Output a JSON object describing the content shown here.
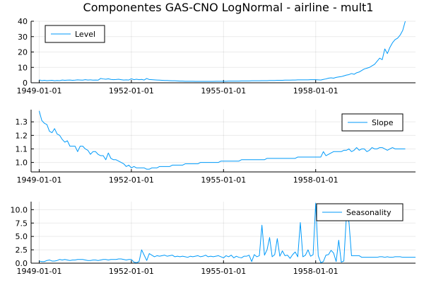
{
  "chart_data": {
    "title": "Componentes GAS-CNO LogNormal - airline - mult1",
    "type": "line",
    "x_start_year": 1949,
    "x_count": 144,
    "color": "#009AFA",
    "grid": true,
    "panels": [
      {
        "series_name": "Level",
        "legend_placement": "top-left",
        "ylim": [
          0,
          40
        ],
        "yticks": [
          0,
          10,
          20,
          30,
          40
        ],
        "ytick_labels": [
          "0",
          "10",
          "20",
          "30",
          "40"
        ],
        "xticks": [
          "1949-01-01",
          "1952-01-01",
          "1955-01-01",
          "1958-01-01"
        ],
        "values": [
          1.9,
          1.4,
          1.6,
          1.4,
          1.5,
          1.6,
          1.3,
          1.5,
          1.4,
          1.8,
          1.6,
          1.7,
          1.8,
          1.6,
          1.7,
          1.9,
          1.8,
          1.7,
          2,
          1.8,
          1.9,
          1.7,
          1.8,
          1.7,
          2.8,
          2.5,
          2.3,
          2.6,
          2.2,
          2,
          2.1,
          2.3,
          2,
          1.8,
          1.9,
          1.8,
          2.6,
          2,
          2.3,
          2,
          2.2,
          1.8,
          2.8,
          2.1,
          2,
          1.9,
          1.8,
          1.7,
          1.6,
          1.5,
          1.5,
          1.4,
          1.3,
          1.3,
          1.2,
          1.1,
          1.1,
          1,
          1,
          1,
          1,
          0.9,
          0.9,
          0.9,
          0.9,
          0.9,
          0.9,
          0.9,
          0.9,
          1,
          1,
          1,
          1,
          1,
          1.1,
          1.1,
          1.1,
          1.1,
          1.1,
          1.2,
          1.2,
          1.2,
          1.2,
          1.3,
          1.3,
          1.3,
          1.3,
          1.4,
          1.4,
          1.4,
          1.5,
          1.5,
          1.5,
          1.6,
          1.6,
          1.6,
          1.7,
          1.7,
          1.7,
          1.8,
          1.8,
          1.9,
          1.9,
          1.9,
          1.9,
          1.9,
          2,
          2,
          2,
          1.9,
          1.8,
          2.2,
          2.5,
          3,
          3.2,
          3,
          3.5,
          3.8,
          4,
          4.5,
          5,
          5.3,
          6,
          5.5,
          6.5,
          7,
          8,
          9,
          9.5,
          10,
          11,
          12,
          14,
          16,
          15,
          22,
          19,
          23,
          26,
          28,
          29,
          31,
          34,
          40
        ]
      },
      {
        "series_name": "Slope",
        "legend_placement": "top-right",
        "ylim": [
          0.93,
          1.39
        ],
        "yticks": [
          1.0,
          1.1,
          1.2,
          1.3
        ],
        "ytick_labels": [
          "1.0",
          "1.1",
          "1.2",
          "1.3"
        ],
        "xticks": [
          "1949-01-01",
          "1952-01-01",
          "1955-01-01",
          "1958-01-01"
        ],
        "values": [
          1.38,
          1.31,
          1.29,
          1.28,
          1.23,
          1.22,
          1.25,
          1.21,
          1.2,
          1.17,
          1.15,
          1.16,
          1.12,
          1.12,
          1.12,
          1.08,
          1.12,
          1.12,
          1.1,
          1.09,
          1.06,
          1.08,
          1.08,
          1.06,
          1.05,
          1.05,
          1.02,
          1.07,
          1.03,
          1.02,
          1.02,
          1.01,
          1,
          0.99,
          0.97,
          0.98,
          0.96,
          0.97,
          0.96,
          0.96,
          0.96,
          0.96,
          0.95,
          0.95,
          0.96,
          0.96,
          0.96,
          0.97,
          0.97,
          0.97,
          0.97,
          0.97,
          0.98,
          0.98,
          0.98,
          0.98,
          0.98,
          0.99,
          0.99,
          0.99,
          0.99,
          0.99,
          0.99,
          1,
          1,
          1,
          1,
          1,
          1,
          1,
          1,
          1.01,
          1.01,
          1.01,
          1.01,
          1.01,
          1.01,
          1.01,
          1.01,
          1.02,
          1.02,
          1.02,
          1.02,
          1.02,
          1.02,
          1.02,
          1.02,
          1.02,
          1.02,
          1.03,
          1.03,
          1.03,
          1.03,
          1.03,
          1.03,
          1.03,
          1.03,
          1.03,
          1.03,
          1.03,
          1.03,
          1.04,
          1.04,
          1.04,
          1.04,
          1.04,
          1.04,
          1.04,
          1.04,
          1.04,
          1.04,
          1.08,
          1.05,
          1.06,
          1.07,
          1.08,
          1.08,
          1.08,
          1.08,
          1.09,
          1.09,
          1.1,
          1.08,
          1.09,
          1.11,
          1.09,
          1.1,
          1.1,
          1.08,
          1.09,
          1.11,
          1.1,
          1.1,
          1.11,
          1.11,
          1.1,
          1.09,
          1.1,
          1.11,
          1.1,
          1.1,
          1.1,
          1.1,
          1.1
        ]
      },
      {
        "series_name": "Seasonality",
        "legend_placement": "top-right",
        "ylim": [
          0,
          11.5
        ],
        "yticks": [
          0,
          2.5,
          5,
          7.5,
          10
        ],
        "ytick_labels": [
          "0.0",
          "2.5",
          "5.0",
          "7.5",
          "10.0"
        ],
        "xticks": [
          "1949-01-01",
          "1952-01-01",
          "1955-01-01",
          "1958-01-01"
        ],
        "values": [
          0.4,
          0.3,
          0.3,
          0.5,
          0.6,
          0.4,
          0.4,
          0.5,
          0.7,
          0.6,
          0.7,
          0.6,
          0.5,
          0.6,
          0.6,
          0.7,
          0.7,
          0.7,
          0.6,
          0.5,
          0.5,
          0.6,
          0.6,
          0.5,
          0.6,
          0.7,
          0.7,
          0.6,
          0.7,
          0.7,
          0.7,
          0.8,
          0.8,
          0.7,
          0.6,
          0.7,
          0.7,
          0.2,
          0.1,
          0.3,
          2.5,
          1.5,
          0.5,
          1.8,
          1.5,
          1.2,
          1.4,
          1.3,
          1.4,
          1.5,
          1.3,
          1.4,
          1.5,
          1.2,
          1.3,
          1.2,
          1.3,
          1.2,
          1.1,
          1.3,
          1.2,
          1.3,
          1.4,
          1.2,
          1.3,
          1.5,
          1.2,
          1.3,
          1.2,
          1.3,
          1.4,
          1.2,
          1.0,
          1.4,
          1.2,
          1.5,
          1.0,
          1.3,
          1.1,
          1.0,
          1.3,
          1.3,
          1.5,
          0.3,
          1.6,
          1.2,
          1.4,
          7.1,
          1.5,
          2.5,
          4.8,
          1.2,
          1.6,
          4.6,
          1.3,
          2.3,
          1.4,
          1.5,
          0.9,
          1.6,
          2.1,
          1.2,
          7.6,
          1.2,
          1.5,
          2.5,
          1.3,
          1.6,
          11.2,
          1.4,
          0.1,
          0.3,
          1.5,
          1.6,
          2.4,
          1.9,
          0.3,
          4.3,
          0.2,
          0.4,
          8.8,
          7.7,
          1.4,
          1.4,
          1.4,
          1.4,
          1.1,
          1.1,
          1.1,
          1.1,
          1.1,
          1.1,
          1.1,
          1.2,
          1.2,
          1.1,
          1.2,
          1.1,
          1.1,
          1.2,
          1.2,
          1.2,
          1.1,
          1.1,
          1.1,
          1.1,
          1.1,
          1.1
        ]
      }
    ]
  }
}
